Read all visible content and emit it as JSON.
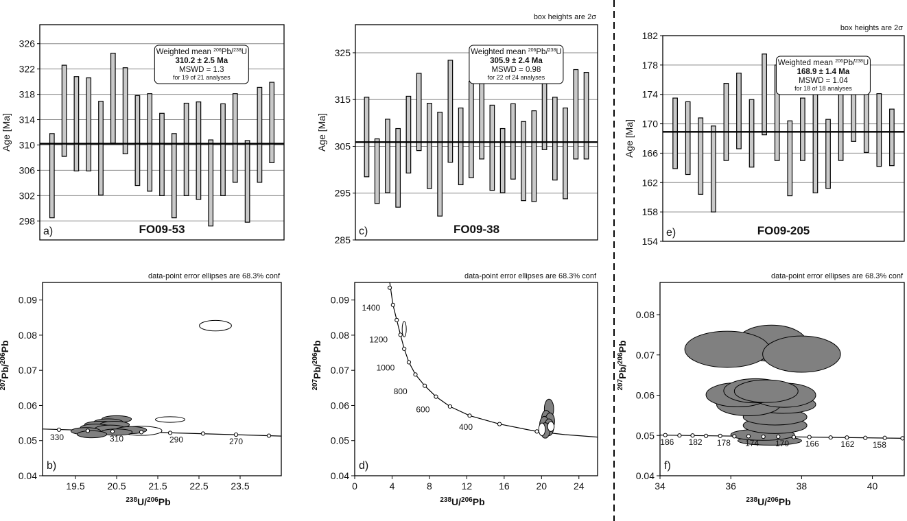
{
  "chart_data": [
    {
      "id": "a",
      "type": "error-bar",
      "panel_label": "a)",
      "sample": "FO09-53",
      "top_note": "",
      "ylabel": "Age [Ma]",
      "ylim": [
        295,
        329
      ],
      "yticks": [
        298,
        302,
        306,
        310,
        314,
        318,
        322,
        326
      ],
      "box_heights_note": "",
      "mean_line": 310.2,
      "legend": {
        "title_prefix": "Weighted mean ",
        "sup1": "206",
        "mid": "Pb/",
        "sup2": "238",
        "suffix": "U",
        "value": "310.2 ± 2.5 Ma",
        "mswd": "MSWD = 1.3",
        "count": "for 19 of 21 analyses"
      },
      "boxes": [
        [
          298.5,
          311.8
        ],
        [
          308.2,
          322.6
        ],
        [
          305.9,
          320.8
        ],
        [
          305.9,
          320.6
        ],
        [
          302.1,
          316.9
        ],
        [
          310.3,
          324.5
        ],
        [
          308.6,
          322.2
        ],
        [
          303.6,
          317.8
        ],
        [
          302.7,
          318.1
        ],
        [
          302.0,
          315.0
        ],
        [
          298.5,
          311.8
        ],
        [
          302.0,
          316.6
        ],
        [
          301.4,
          316.8
        ],
        [
          297.2,
          310.8
        ],
        [
          302.0,
          316.5
        ],
        [
          304.1,
          318.1
        ],
        [
          297.8,
          310.7
        ],
        [
          304.1,
          319.1
        ],
        [
          307.2,
          319.9
        ]
      ]
    },
    {
      "id": "c",
      "type": "error-bar",
      "panel_label": "c)",
      "sample": "FO09-38",
      "top_note": "box heights are 2σ",
      "ylabel": "Age [Ma]",
      "ylim": [
        285,
        331
      ],
      "yticks": [
        285,
        295,
        305,
        315,
        325
      ],
      "mean_line": 305.9,
      "legend": {
        "title_prefix": "Weighted mean ",
        "sup1": "206",
        "mid": "Pb/",
        "sup2": "238",
        "suffix": "U",
        "value": "305.9 ± 2.4 Ma",
        "mswd": "MSWD = 0.98",
        "count": "for 22 of 24 analyses"
      },
      "boxes": [
        [
          298.5,
          315.5
        ],
        [
          292.8,
          306.6
        ],
        [
          295.1,
          310.8
        ],
        [
          292.0,
          308.8
        ],
        [
          299.3,
          315.7
        ],
        [
          304.1,
          320.6
        ],
        [
          296.0,
          314.2
        ],
        [
          290.1,
          312.3
        ],
        [
          301.6,
          323.4
        ],
        [
          296.8,
          313.2
        ],
        [
          298.3,
          318.9
        ],
        [
          302.3,
          320.8
        ],
        [
          295.6,
          313.8
        ],
        [
          295.1,
          308.8
        ],
        [
          298.0,
          314.1
        ],
        [
          293.4,
          310.3
        ],
        [
          293.2,
          312.6
        ],
        [
          304.3,
          321.8
        ],
        [
          297.8,
          315.5
        ],
        [
          293.8,
          313.2
        ],
        [
          302.3,
          321.4
        ],
        [
          302.3,
          320.8
        ]
      ]
    },
    {
      "id": "e",
      "type": "error-bar",
      "panel_label": "e)",
      "sample": "FO09-205",
      "top_note": "box heights are 2σ",
      "ylabel": "Age [Ma]",
      "ylim": [
        154,
        182
      ],
      "yticks": [
        154,
        158,
        162,
        166,
        170,
        174,
        178,
        182
      ],
      "mean_line": 168.9,
      "legend": {
        "title_prefix": "Weighted mean ",
        "sup1": "206",
        "mid": "Pb/",
        "sup2": "238",
        "suffix": "U",
        "value": "168.9 ± 1.4 Ma",
        "mswd": "MSWD = 1.04",
        "count": "for 18 of 18 analyses"
      },
      "boxes": [
        [
          163.9,
          173.5
        ],
        [
          163.1,
          173.0
        ],
        [
          160.4,
          170.8
        ],
        [
          158.0,
          169.7
        ],
        [
          165.0,
          175.5
        ],
        [
          166.6,
          176.9
        ],
        [
          164.1,
          173.3
        ],
        [
          168.5,
          179.5
        ],
        [
          165.0,
          178.0
        ],
        [
          160.2,
          170.4
        ],
        [
          165.0,
          173.5
        ],
        [
          160.6,
          174.1
        ],
        [
          161.2,
          170.6
        ],
        [
          165.0,
          174.0
        ],
        [
          167.6,
          175.6
        ],
        [
          166.1,
          176.6
        ],
        [
          164.2,
          174.1
        ],
        [
          164.3,
          172.0
        ]
      ]
    },
    {
      "id": "b",
      "type": "concordia",
      "panel_label": "b)",
      "top_note": "data-point error ellipses are 68.3% conf",
      "xlim": [
        18.7,
        24.5
      ],
      "ylim": [
        0.04,
        0.095
      ],
      "xticks": [
        19.5,
        20.5,
        21.5,
        22.5,
        23.5
      ],
      "yticks": [
        0.04,
        0.05,
        0.06,
        0.07,
        0.08,
        0.09
      ],
      "xlabel": {
        "sup1": "238",
        "base1": "U/",
        "sup2": "206",
        "base2": "Pb"
      },
      "ylabel": {
        "sup1": "207",
        "base1": "Pb/",
        "sup2": "206",
        "base2": "Pb"
      },
      "curve": [
        [
          18.7,
          0.0533
        ],
        [
          24.5,
          0.0513
        ]
      ],
      "age_marks": [
        [
          19.1,
          0.0531
        ],
        [
          19.8,
          0.0528
        ],
        [
          20.4,
          0.0526
        ],
        [
          21.1,
          0.0524
        ],
        [
          21.8,
          0.0522
        ],
        [
          22.6,
          0.052
        ],
        [
          23.4,
          0.0517
        ],
        [
          24.2,
          0.0514
        ]
      ],
      "age_labels": [
        {
          "text": "330",
          "x": 19.05,
          "y": 0.0509
        },
        {
          "text": "310",
          "x": 20.5,
          "y": 0.0505
        },
        {
          "text": "290",
          "x": 21.95,
          "y": 0.0502
        },
        {
          "text": "270",
          "x": 23.4,
          "y": 0.0498
        }
      ],
      "ellipses": [
        {
          "cx": 22.9,
          "cy": 0.0827,
          "rx": 0.39,
          "ry": 0.0015,
          "filled": false
        },
        {
          "cx": 21.8,
          "cy": 0.056,
          "rx": 0.36,
          "ry": 0.0008,
          "filled": false
        },
        {
          "cx": 21.1,
          "cy": 0.0528,
          "rx": 0.5,
          "ry": 0.0013,
          "filled": false
        },
        {
          "cx": 20.5,
          "cy": 0.0561,
          "rx": 0.36,
          "ry": 0.001,
          "filled": true
        },
        {
          "cx": 20.3,
          "cy": 0.0552,
          "rx": 0.36,
          "ry": 0.001,
          "filled": true
        },
        {
          "cx": 20.1,
          "cy": 0.0545,
          "rx": 0.38,
          "ry": 0.001,
          "filled": true
        },
        {
          "cx": 20.45,
          "cy": 0.0545,
          "rx": 0.36,
          "ry": 0.001,
          "filled": true
        },
        {
          "cx": 20.0,
          "cy": 0.0537,
          "rx": 0.38,
          "ry": 0.001,
          "filled": true
        },
        {
          "cx": 20.35,
          "cy": 0.0533,
          "rx": 0.38,
          "ry": 0.0011,
          "filled": true
        },
        {
          "cx": 20.85,
          "cy": 0.053,
          "rx": 0.38,
          "ry": 0.001,
          "filled": true
        },
        {
          "cx": 19.75,
          "cy": 0.0527,
          "rx": 0.36,
          "ry": 0.001,
          "filled": true
        },
        {
          "cx": 20.5,
          "cy": 0.0524,
          "rx": 0.38,
          "ry": 0.0009,
          "filled": true
        },
        {
          "cx": 19.9,
          "cy": 0.0518,
          "rx": 0.36,
          "ry": 0.001,
          "filled": true
        }
      ]
    },
    {
      "id": "d",
      "type": "concordia",
      "panel_label": "d)",
      "top_note": "data-point error ellipses are 68.3% conf",
      "xlim": [
        0,
        26
      ],
      "ylim": [
        0.04,
        0.095
      ],
      "xticks": [
        0,
        4,
        8,
        12,
        16,
        20,
        24
      ],
      "yticks": [
        0.04,
        0.05,
        0.06,
        0.07,
        0.08,
        0.09
      ],
      "xlabel": {
        "sup1": "238",
        "base1": "U/",
        "sup2": "206",
        "base2": "Pb"
      },
      "ylabel": {
        "sup1": "207",
        "base1": "Pb/",
        "sup2": "206",
        "base2": "Pb"
      },
      "curve": [
        [
          3.75,
          0.095
        ],
        [
          4.1,
          0.0886
        ],
        [
          4.5,
          0.0843
        ],
        [
          4.9,
          0.0801
        ],
        [
          5.3,
          0.0761
        ],
        [
          5.8,
          0.0723
        ],
        [
          6.5,
          0.0688
        ],
        [
          7.5,
          0.0656
        ],
        [
          8.7,
          0.0625
        ],
        [
          10.2,
          0.0597
        ],
        [
          12.3,
          0.0571
        ],
        [
          15.5,
          0.0547
        ],
        [
          19.5,
          0.0526
        ],
        [
          22.5,
          0.0517
        ],
        [
          26,
          0.051
        ]
      ],
      "age_marks": [
        [
          3.75,
          0.0935
        ],
        [
          4.1,
          0.0886
        ],
        [
          4.5,
          0.0843
        ],
        [
          4.9,
          0.0801
        ],
        [
          5.3,
          0.0761
        ],
        [
          5.8,
          0.0723
        ],
        [
          6.5,
          0.0688
        ],
        [
          7.5,
          0.0656
        ],
        [
          8.7,
          0.0625
        ],
        [
          10.2,
          0.0597
        ],
        [
          12.3,
          0.0571
        ],
        [
          15.5,
          0.0547
        ],
        [
          19.5,
          0.0526
        ]
      ],
      "age_labels": [
        {
          "text": "1400",
          "x": 1.75,
          "y": 0.0878
        },
        {
          "text": "1200",
          "x": 2.55,
          "y": 0.0787
        },
        {
          "text": "1000",
          "x": 3.3,
          "y": 0.0707
        },
        {
          "text": "800",
          "x": 4.9,
          "y": 0.064
        },
        {
          "text": "600",
          "x": 7.3,
          "y": 0.0588
        },
        {
          "text": "400",
          "x": 11.9,
          "y": 0.0538
        }
      ],
      "ellipses": [
        {
          "cx": 5.3,
          "cy": 0.0817,
          "rx": 0.22,
          "ry": 0.0022,
          "filled": false
        },
        {
          "cx": 20.8,
          "cy": 0.059,
          "rx": 0.5,
          "ry": 0.0028,
          "filled": true
        },
        {
          "cx": 20.5,
          "cy": 0.0562,
          "rx": 0.5,
          "ry": 0.0024,
          "filled": true
        },
        {
          "cx": 20.9,
          "cy": 0.0555,
          "rx": 0.5,
          "ry": 0.0024,
          "filled": true
        },
        {
          "cx": 20.3,
          "cy": 0.0545,
          "rx": 0.5,
          "ry": 0.0024,
          "filled": true
        },
        {
          "cx": 20.8,
          "cy": 0.0538,
          "rx": 0.5,
          "ry": 0.0024,
          "filled": true
        },
        {
          "cx": 20.4,
          "cy": 0.0529,
          "rx": 0.5,
          "ry": 0.0022,
          "filled": true
        },
        {
          "cx": 20.05,
          "cy": 0.0532,
          "rx": 0.35,
          "ry": 0.0018,
          "filled": false
        },
        {
          "cx": 21.0,
          "cy": 0.054,
          "rx": 0.35,
          "ry": 0.0014,
          "filled": false
        }
      ]
    },
    {
      "id": "f",
      "type": "concordia",
      "panel_label": "f)",
      "top_note": "data-point error ellipses are 68.3% conf",
      "xlim": [
        34,
        40.9
      ],
      "ylim": [
        0.04,
        0.088
      ],
      "xticks": [
        34,
        36,
        38,
        40
      ],
      "yticks": [
        0.04,
        0.05,
        0.06,
        0.07,
        0.08
      ],
      "xlabel": {
        "sup1": "238",
        "base1": "U/",
        "sup2": "206",
        "base2": "Pb"
      },
      "ylabel": {
        "sup1": "207",
        "base1": "Pb/",
        "sup2": "206",
        "base2": "Pb"
      },
      "curve": [
        [
          34,
          0.0501
        ],
        [
          40.9,
          0.0493
        ]
      ],
      "age_marks": [
        [
          34.15,
          0.0501
        ],
        [
          34.55,
          0.05
        ],
        [
          34.92,
          0.05
        ],
        [
          35.3,
          0.0499
        ],
        [
          35.7,
          0.0499
        ],
        [
          36.1,
          0.0498
        ],
        [
          36.5,
          0.0498
        ],
        [
          36.92,
          0.0497
        ],
        [
          37.34,
          0.0497
        ],
        [
          37.78,
          0.0496
        ],
        [
          38.22,
          0.0496
        ],
        [
          38.82,
          0.0495
        ],
        [
          39.28,
          0.0495
        ],
        [
          39.8,
          0.0494
        ],
        [
          40.35,
          0.0494
        ],
        [
          40.85,
          0.0493
        ]
      ],
      "age_labels": [
        {
          "text": "186",
          "x": 34.2,
          "y": 0.0483
        },
        {
          "text": "182",
          "x": 35.0,
          "y": 0.0483
        },
        {
          "text": "178",
          "x": 35.8,
          "y": 0.0482
        },
        {
          "text": "174",
          "x": 36.6,
          "y": 0.0481
        },
        {
          "text": "170",
          "x": 37.45,
          "y": 0.048
        },
        {
          "text": "166",
          "x": 38.3,
          "y": 0.0479
        },
        {
          "text": "162",
          "x": 39.3,
          "y": 0.0478
        },
        {
          "text": "158",
          "x": 40.2,
          "y": 0.0477
        }
      ],
      "ellipses": [
        {
          "cx": 37.1,
          "cy": 0.0487,
          "rx": 0.9,
          "ry": 0.0011,
          "filled": true
        },
        {
          "cx": 36.9,
          "cy": 0.0502,
          "rx": 0.9,
          "ry": 0.0014,
          "filled": true
        },
        {
          "cx": 37.25,
          "cy": 0.0525,
          "rx": 0.9,
          "ry": 0.002,
          "filled": true
        },
        {
          "cx": 37.25,
          "cy": 0.0546,
          "rx": 0.9,
          "ry": 0.002,
          "filled": true
        },
        {
          "cx": 37.5,
          "cy": 0.0577,
          "rx": 0.9,
          "ry": 0.0022,
          "filled": true
        },
        {
          "cx": 36.5,
          "cy": 0.0577,
          "rx": 0.9,
          "ry": 0.0028,
          "filled": true
        },
        {
          "cx": 37.5,
          "cy": 0.06,
          "rx": 0.9,
          "ry": 0.003,
          "filled": true
        },
        {
          "cx": 36.2,
          "cy": 0.0601,
          "rx": 0.9,
          "ry": 0.003,
          "filled": true
        },
        {
          "cx": 36.7,
          "cy": 0.0611,
          "rx": 0.9,
          "ry": 0.003,
          "filled": true
        },
        {
          "cx": 37.0,
          "cy": 0.061,
          "rx": 0.9,
          "ry": 0.0028,
          "filled": true
        },
        {
          "cx": 37.15,
          "cy": 0.0729,
          "rx": 1.0,
          "ry": 0.0045,
          "filled": true
        },
        {
          "cx": 35.9,
          "cy": 0.0714,
          "rx": 1.2,
          "ry": 0.0045,
          "filled": true
        },
        {
          "cx": 38.0,
          "cy": 0.0702,
          "rx": 1.1,
          "ry": 0.0045,
          "filled": true
        }
      ]
    }
  ]
}
